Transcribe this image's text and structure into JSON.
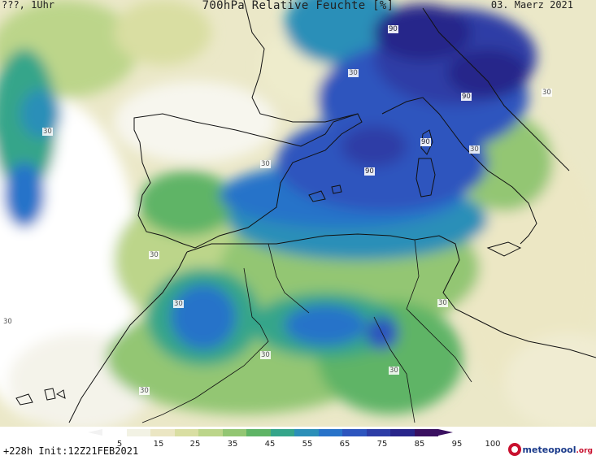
{
  "header": {
    "left": "???, 1Uhr",
    "title": "700hPa Relative Feuchte [%]",
    "date": "03. Maerz 2021"
  },
  "contour_labels": [
    {
      "text": "90"
    },
    {
      "text": "30"
    },
    {
      "text": "90"
    },
    {
      "text": "30"
    },
    {
      "text": "90"
    },
    {
      "text": "30"
    },
    {
      "text": "90"
    },
    {
      "text": "30"
    },
    {
      "text": "30"
    },
    {
      "text": "30"
    },
    {
      "text": "30"
    },
    {
      "text": "30"
    },
    {
      "text": "30"
    },
    {
      "text": "30"
    },
    {
      "text": "30"
    },
    {
      "text": "30"
    }
  ],
  "colorbar": {
    "ticks": [
      "5",
      "15",
      "25",
      "35",
      "45",
      "55",
      "65",
      "75",
      "85",
      "95",
      "100"
    ],
    "colors": [
      "#ffffff",
      "#f2f2e4",
      "#ebe6c3",
      "#d9dea2",
      "#bcd58a",
      "#93c673",
      "#5fb466",
      "#35a58a",
      "#2c8fb8",
      "#2873c9",
      "#2d55be",
      "#2d3da6",
      "#28258a",
      "#3a1060"
    ]
  },
  "footer": {
    "run": "+228h Init:12Z21FEB2021",
    "logo_main": "meteopool",
    "logo_suffix": ".org"
  }
}
